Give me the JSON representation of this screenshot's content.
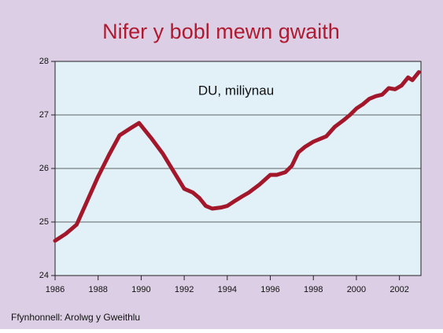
{
  "chart_data": {
    "type": "line",
    "title": "Nifer y bobl mewn gwaith",
    "annotation": "DU, miliynau",
    "source": "Ffynhonnell: Arolwg y Gweithlu",
    "x": [
      1986.0,
      1986.5,
      1987.0,
      1987.5,
      1988.0,
      1988.5,
      1989.0,
      1989.5,
      1989.9,
      1990.5,
      1991.0,
      1991.5,
      1992.0,
      1992.4,
      1992.7,
      1993.0,
      1993.3,
      1993.7,
      1994.0,
      1994.3,
      1994.7,
      1995.0,
      1995.5,
      1996.0,
      1996.3,
      1996.7,
      1997.0,
      1997.3,
      1997.6,
      1998.0,
      1998.3,
      1998.6,
      1999.0,
      1999.4,
      1999.7,
      2000.0,
      2000.3,
      2000.6,
      2000.9,
      2001.2,
      2001.5,
      2001.8,
      2002.1,
      2002.4,
      2002.6,
      2002.9
    ],
    "series": [
      {
        "name": "Nifer y bobl mewn gwaith",
        "color": "#a3172b",
        "values": [
          24.65,
          24.78,
          24.95,
          25.4,
          25.85,
          26.25,
          26.62,
          26.75,
          26.85,
          26.55,
          26.28,
          25.95,
          25.62,
          25.55,
          25.45,
          25.3,
          25.25,
          25.27,
          25.3,
          25.38,
          25.48,
          25.55,
          25.7,
          25.88,
          25.88,
          25.93,
          26.05,
          26.3,
          26.4,
          26.5,
          26.55,
          26.6,
          26.78,
          26.9,
          27.0,
          27.12,
          27.2,
          27.3,
          27.35,
          27.38,
          27.5,
          27.48,
          27.55,
          27.7,
          27.65,
          27.8
        ]
      }
    ],
    "xlim": [
      1986,
      2003
    ],
    "xticks": [
      1986,
      1988,
      1990,
      1992,
      1994,
      1996,
      1998,
      2000,
      2002
    ],
    "ylim": [
      24,
      28
    ],
    "yticks": [
      24,
      25,
      26,
      27,
      28
    ],
    "grid": true
  }
}
